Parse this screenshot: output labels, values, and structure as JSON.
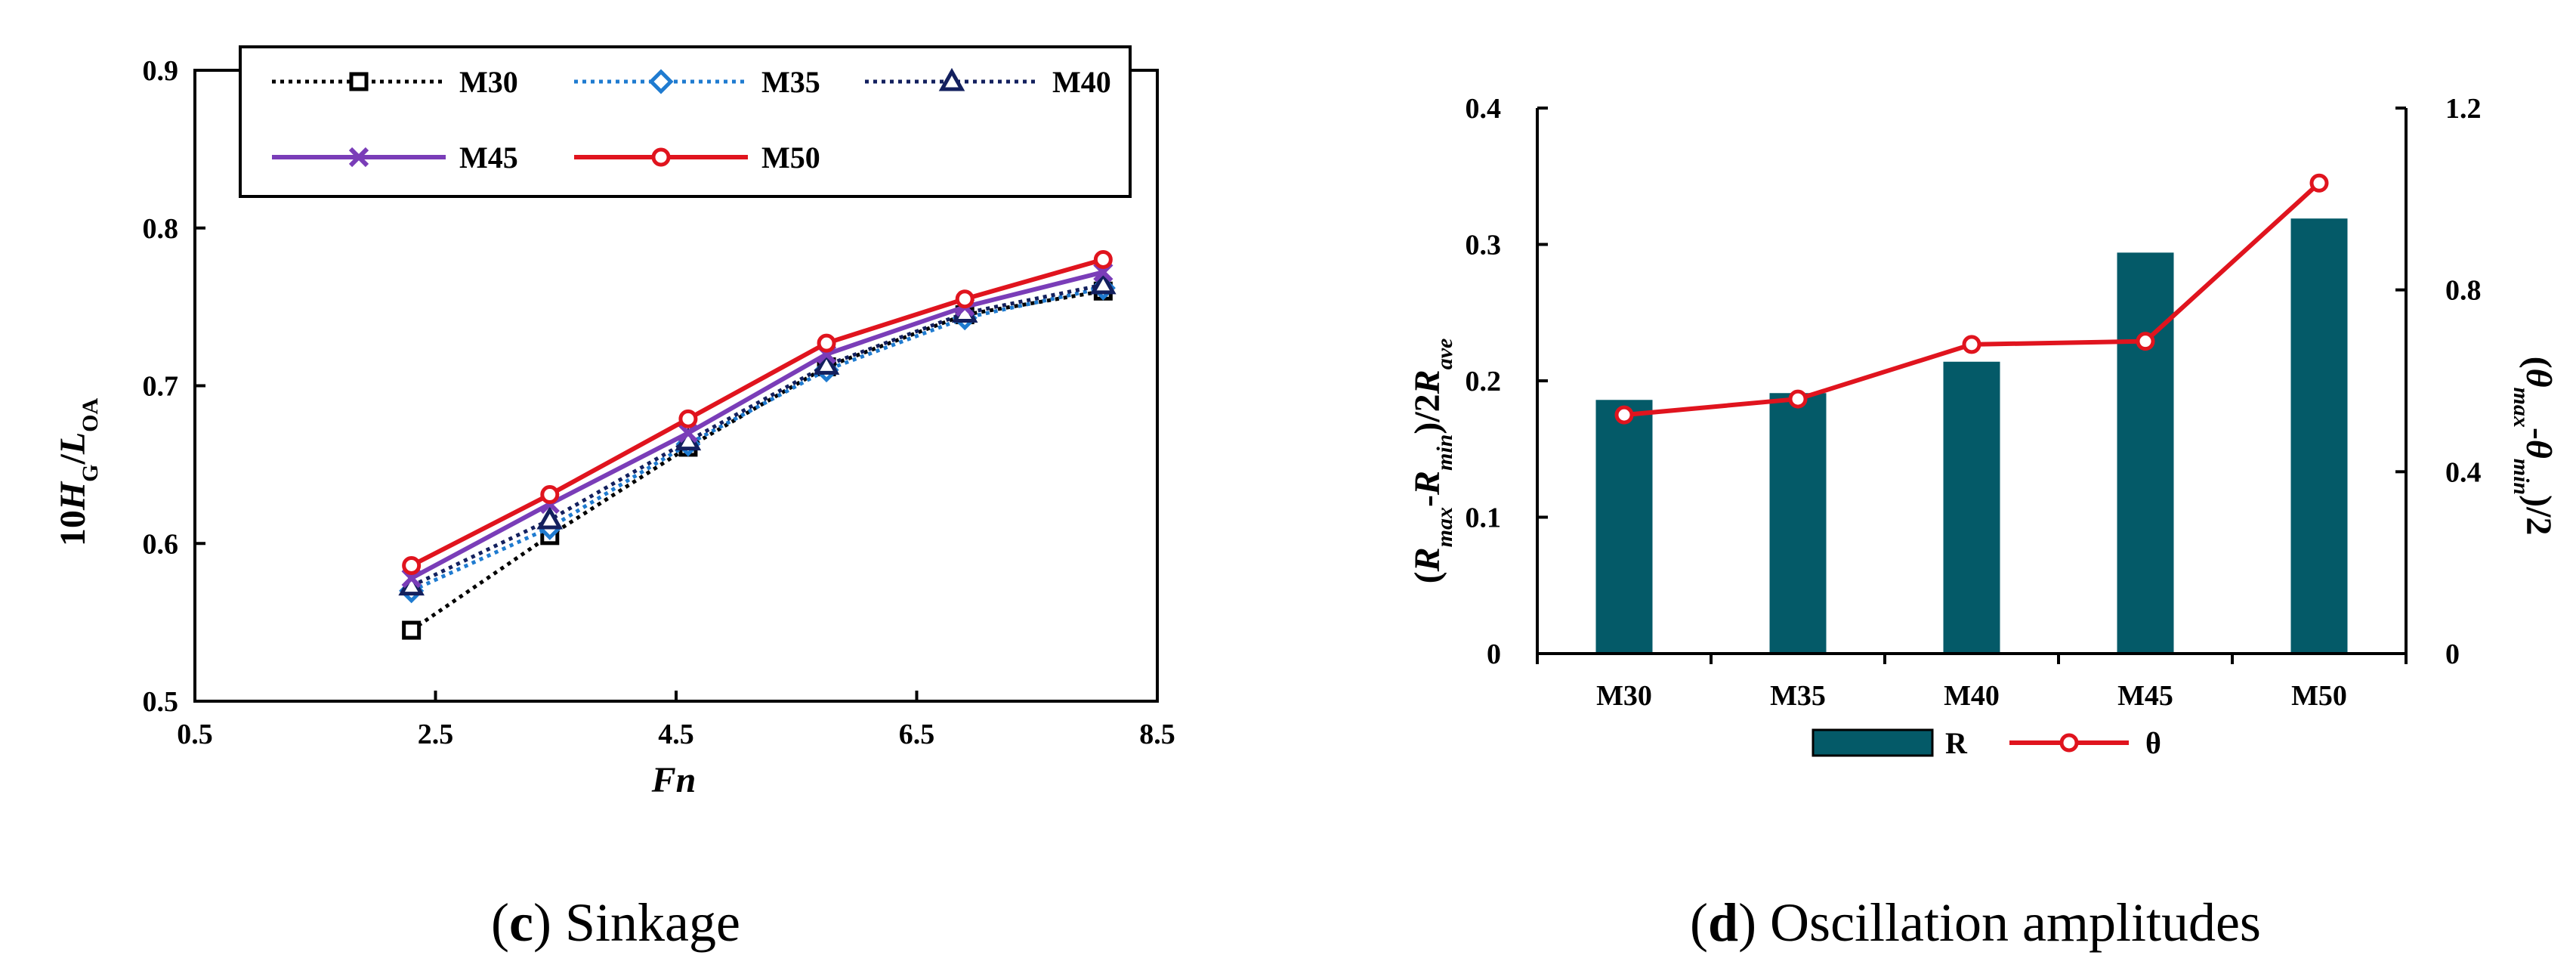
{
  "chart_data": [
    {
      "type": "line",
      "caption_letter": "c",
      "caption_text": "Sinkage",
      "xlabel": "Fn",
      "ylabel": {
        "prefix": "10",
        "H": "H",
        "H_sub": "G",
        "slash": "/",
        "L": "L",
        "L_sub": "OA"
      },
      "xlim": [
        0.5,
        8.5
      ],
      "ylim": [
        0.5,
        0.9
      ],
      "xticks": [
        "0.5",
        "2.5",
        "4.5",
        "6.5",
        "8.5"
      ],
      "yticks": [
        "0.5",
        "0.6",
        "0.7",
        "0.8",
        "0.9"
      ],
      "legend": "top (inside frame, two rows)",
      "x": [
        2.3,
        3.45,
        4.6,
        5.75,
        6.9,
        8.05
      ],
      "series": [
        {
          "name": "M30",
          "values": [
            0.545,
            0.605,
            0.661,
            0.712,
            0.745,
            0.76
          ],
          "color": "#000000",
          "line": "dotted",
          "marker": "square"
        },
        {
          "name": "M35",
          "values": [
            0.57,
            0.61,
            0.663,
            0.71,
            0.743,
            0.762
          ],
          "color": "#1f7bd0",
          "line": "dotted",
          "marker": "diamond"
        },
        {
          "name": "M40",
          "values": [
            0.573,
            0.615,
            0.665,
            0.713,
            0.746,
            0.764
          ],
          "color": "#13205e",
          "line": "dotted",
          "marker": "triangle"
        },
        {
          "name": "M45",
          "values": [
            0.578,
            0.625,
            0.67,
            0.72,
            0.75,
            0.772
          ],
          "color": "#7a3db8",
          "line": "solid",
          "marker": "x"
        },
        {
          "name": "M50",
          "values": [
            0.586,
            0.631,
            0.679,
            0.727,
            0.755,
            0.78
          ],
          "color": "#e0141e",
          "line": "solid",
          "marker": "circle"
        }
      ]
    },
    {
      "type": "bar",
      "caption_letter": "d",
      "caption_text": "Oscillation amplitudes",
      "categories": [
        "M30",
        "M35",
        "M40",
        "M45",
        "M50"
      ],
      "ylabel_left": {
        "open": "(",
        "R1": "R",
        "R1_sub": "max",
        "dash": "-",
        "R2": "R",
        "R2_sub": "min",
        "mid": ")/2",
        "R3": "R",
        "R3_sub": "ave"
      },
      "ylabel_right": {
        "open": "(",
        "t1": "θ",
        "t1_sub": "max",
        "dash": "-",
        "t2": "θ",
        "t2_sub": "min",
        "close": ")/2"
      },
      "ylim_left": [
        0,
        0.4
      ],
      "ylim_right": [
        0,
        1.2
      ],
      "yticks_left": [
        "0",
        "0.1",
        "0.2",
        "0.3",
        "0.4"
      ],
      "yticks_right": [
        "0",
        "0.4",
        "0.8",
        "1.2"
      ],
      "legend": "bottom-center",
      "series": [
        {
          "name": "R",
          "type": "bar",
          "axis": "left",
          "values": [
            0.186,
            0.191,
            0.214,
            0.294,
            0.319
          ],
          "color": "#045a68"
        },
        {
          "name": "θ",
          "type": "line",
          "axis": "right",
          "values": [
            0.525,
            0.56,
            0.68,
            0.687,
            1.035
          ],
          "color": "#e0141e",
          "marker": "circle"
        }
      ]
    }
  ]
}
